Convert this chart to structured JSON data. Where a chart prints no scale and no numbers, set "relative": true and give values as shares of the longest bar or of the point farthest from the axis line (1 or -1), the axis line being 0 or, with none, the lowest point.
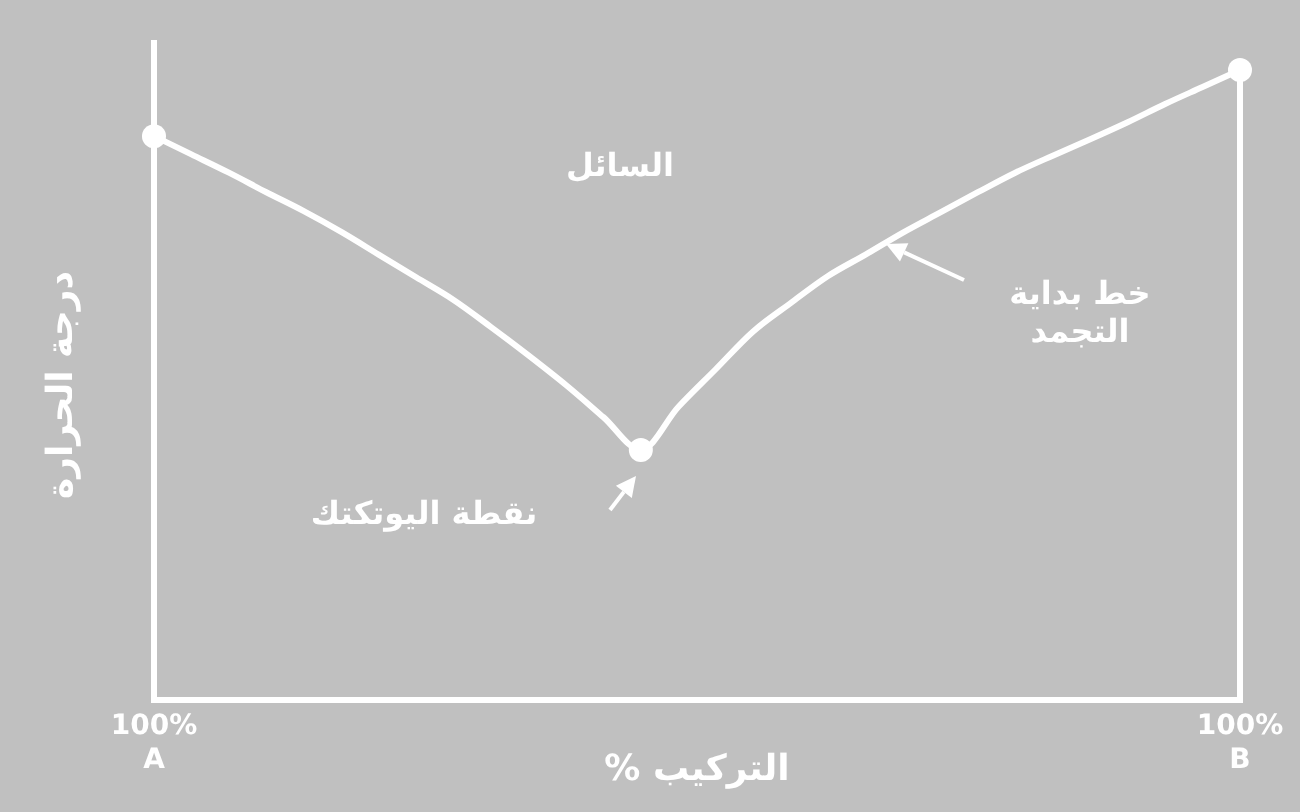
{
  "chart_data": {
    "type": "line",
    "relative": true,
    "xlabel": "التركيب %",
    "ylabel": "درجة الحرارة",
    "categories": [
      "100%\nA",
      null,
      null,
      null,
      null,
      null,
      null,
      null,
      null,
      null,
      null,
      null,
      null,
      null,
      null,
      null,
      null,
      null,
      null,
      null,
      null,
      null,
      null,
      null,
      null,
      null,
      null,
      null,
      null,
      "100%\nB"
    ],
    "series": [
      {
        "color": "#ffffff",
        "values": [
          0.895,
          0.866,
          0.837,
          0.806,
          0.776,
          0.743,
          0.707,
          0.671,
          0.635,
          0.592,
          0.547,
          0.5,
          0.449,
          0.397,
          0.465,
          0.525,
          0.585,
          0.63,
          0.673,
          0.707,
          0.742,
          0.774,
          0.806,
          0.837,
          0.864,
          0.89,
          0.917,
          0.946,
          0.973,
          1
        ]
      },
      {
        "type": "scatter",
        "color": "#ffffff",
        "marker": "circle",
        "values": [
          0.895,
          null,
          null,
          null,
          null,
          null,
          null,
          null,
          null,
          null,
          null,
          null,
          null,
          0.397,
          null,
          null,
          null,
          null,
          null,
          null,
          null,
          null,
          null,
          null,
          null,
          null,
          null,
          null,
          null,
          1
        ]
      }
    ],
    "annotations": [
      "السائل",
      "خط بداية\nالتجمد",
      "نقطة اليوتكتك"
    ]
  }
}
